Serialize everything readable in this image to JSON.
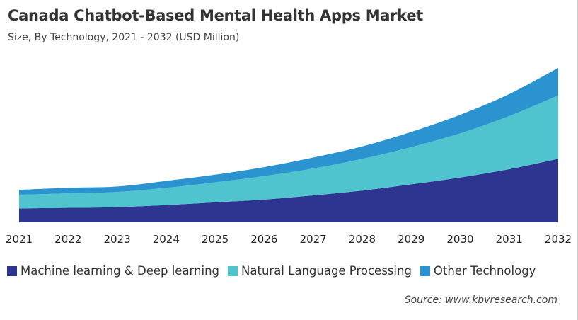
{
  "chart_data": {
    "type": "area",
    "stacked": true,
    "title": "Canada Chatbot-Based Mental Health Apps Market",
    "subtitle": "Size, By Technology, 2021 - 2032 (USD Million)",
    "categories": [
      "2021",
      "2022",
      "2023",
      "2024",
      "2025",
      "2026",
      "2027",
      "2028",
      "2029",
      "2030",
      "2031",
      "2032"
    ],
    "series": [
      {
        "name": "Machine learning & Deep learning",
        "color": "#2e3590",
        "values": [
          20,
          21,
          22,
          25,
          29,
          33,
          39,
          46,
          55,
          65,
          77,
          92
        ]
      },
      {
        "name": "Natural Language Processing",
        "color": "#4fc4cf",
        "values": [
          20,
          21,
          22,
          25,
          29,
          34,
          39,
          46,
          54,
          64,
          77,
          92
        ]
      },
      {
        "name": "Other Technology",
        "color": "#2b93d0",
        "values": [
          7,
          8,
          8,
          10,
          11,
          13,
          16,
          18,
          22,
          27,
          32,
          40
        ]
      }
    ],
    "ylim": [
      0,
      230
    ],
    "yaxis_visible": false,
    "grid": false,
    "legend_placement": "bottom",
    "source": "Source: www.kbvresearch.com"
  }
}
